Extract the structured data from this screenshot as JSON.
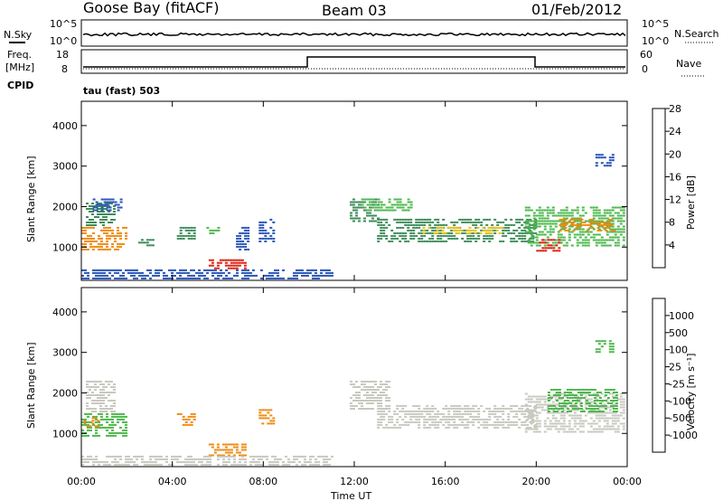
{
  "header": {
    "station": "Goose Bay (fitACF)",
    "beam": "Beam 03",
    "date": "01/Feb/2012"
  },
  "noise_panel": {
    "left_label": "N.Sky",
    "right_label": "N.Search",
    "left_ticks": [
      "10^5",
      "10^0"
    ],
    "right_ticks": [
      "10^5",
      "10^0"
    ]
  },
  "freq_panel": {
    "left_label_1": "Freq.",
    "left_label_2": "[MHz]",
    "cpid_label": "CPID",
    "right_label": "Nave",
    "left_ticks": [
      "18",
      "8"
    ],
    "right_ticks": [
      "60",
      "0"
    ]
  },
  "cpid_text": "tau (fast) 503",
  "colors": {
    "blue": "#1c3fe0",
    "dark_blue": "#2a55b8",
    "teal_green": "#3e8c5a",
    "green": "#4cb84c",
    "yellow": "#e8c21a",
    "orange": "#f08a10",
    "red": "#e02010",
    "grey": "#c8c8c0"
  },
  "chart_data": [
    {
      "type": "heatmap",
      "title": "Power",
      "ylabel": "Slant Range [km]",
      "xlabel": "",
      "x_ticks": [
        "00:00",
        "04:00",
        "08:00",
        "12:00",
        "16:00",
        "20:00",
        "00:00"
      ],
      "y_ticks": [
        "1000",
        "2000",
        "3000",
        "4000"
      ],
      "xlim_hours": [
        0,
        24
      ],
      "ylim_km": [
        180,
        4600
      ],
      "colorbar": {
        "label": "Power [dB]",
        "ticks": [
          "4",
          "8",
          "12",
          "16",
          "20",
          "24",
          "28"
        ],
        "range": [
          0,
          30
        ],
        "levels": [
          "#1c3fe0",
          "#2a55b8",
          "#3e8c5a",
          "#4cb84c",
          "#e8c21a",
          "#f08a10",
          "#e02010"
        ]
      },
      "regions": [
        {
          "t0": 0.0,
          "t1": 2.0,
          "r0": 900,
          "r1": 1500,
          "level": 5
        },
        {
          "t0": 0.2,
          "t1": 1.4,
          "r0": 1500,
          "r1": 2100,
          "level": 2
        },
        {
          "t0": 0.5,
          "t1": 1.8,
          "r0": 1900,
          "r1": 2200,
          "level": 1
        },
        {
          "t0": 2.5,
          "t1": 3.2,
          "r0": 1000,
          "r1": 1200,
          "level": 2
        },
        {
          "t0": 4.2,
          "t1": 5.0,
          "r0": 1200,
          "r1": 1500,
          "level": 2
        },
        {
          "t0": 5.5,
          "t1": 6.0,
          "r0": 1300,
          "r1": 1500,
          "level": 3
        },
        {
          "t0": 5.6,
          "t1": 7.2,
          "r0": 450,
          "r1": 700,
          "level": 6
        },
        {
          "t0": 6.8,
          "t1": 7.3,
          "r0": 900,
          "r1": 1500,
          "level": 1
        },
        {
          "t0": 7.8,
          "t1": 8.4,
          "r0": 1100,
          "r1": 1700,
          "level": 1
        },
        {
          "t0": 11.8,
          "t1": 13.0,
          "r0": 1600,
          "r1": 2200,
          "level": 2
        },
        {
          "t0": 12.3,
          "t1": 14.5,
          "r0": 1900,
          "r1": 2200,
          "level": 3
        },
        {
          "t0": 13.0,
          "t1": 20.0,
          "r0": 1100,
          "r1": 1700,
          "level": 2
        },
        {
          "t0": 15.0,
          "t1": 18.5,
          "r0": 1300,
          "r1": 1500,
          "level": 4
        },
        {
          "t0": 19.5,
          "t1": 23.8,
          "r0": 1000,
          "r1": 2000,
          "level": 3
        },
        {
          "t0": 21.0,
          "t1": 23.5,
          "r0": 1400,
          "r1": 1700,
          "level": 5
        },
        {
          "t0": 20.0,
          "t1": 21.0,
          "r0": 900,
          "r1": 1200,
          "level": 6
        },
        {
          "t0": 0.0,
          "t1": 11.0,
          "r0": 200,
          "r1": 450,
          "level": 1
        },
        {
          "t0": 22.6,
          "t1": 23.4,
          "r0": 3000,
          "r1": 3300,
          "level": 1
        }
      ]
    },
    {
      "type": "heatmap",
      "title": "Velocity",
      "ylabel": "Slant Range [km]",
      "xlabel": "Time UT",
      "x_ticks": [
        "00:00",
        "04:00",
        "08:00",
        "12:00",
        "16:00",
        "20:00",
        "00:00"
      ],
      "y_ticks": [
        "1000",
        "2000",
        "3000",
        "4000"
      ],
      "xlim_hours": [
        0,
        24
      ],
      "ylim_km": [
        180,
        4600
      ],
      "colorbar": {
        "label": "Velocity [m s⁻¹]",
        "ticks": [
          "1000",
          "500",
          "100",
          "25",
          "-25",
          "-100",
          "-500",
          "-1000"
        ],
        "range": [
          -1000,
          1000
        ],
        "levels": [
          "#1c3fe0",
          "#2a55b8",
          "#3e8c5a",
          "#4cb84c",
          "#c8c8c0",
          "#f08a10",
          "#f05010",
          "#e02010"
        ]
      },
      "regions": [
        {
          "t0": 0.0,
          "t1": 2.0,
          "r0": 900,
          "r1": 1500,
          "level": 3
        },
        {
          "t0": 0.2,
          "t1": 1.4,
          "r0": 1500,
          "r1": 2300,
          "level": 4
        },
        {
          "t0": 0.1,
          "t1": 0.8,
          "r0": 1150,
          "r1": 1400,
          "level": 5
        },
        {
          "t0": 4.2,
          "t1": 5.0,
          "r0": 1200,
          "r1": 1500,
          "level": 5
        },
        {
          "t0": 5.6,
          "t1": 7.2,
          "r0": 450,
          "r1": 750,
          "level": 5
        },
        {
          "t0": 7.8,
          "t1": 8.4,
          "r0": 1200,
          "r1": 1600,
          "level": 5
        },
        {
          "t0": 11.8,
          "t1": 13.5,
          "r0": 1600,
          "r1": 2300,
          "level": 4
        },
        {
          "t0": 13.0,
          "t1": 20.0,
          "r0": 1100,
          "r1": 1700,
          "level": 4
        },
        {
          "t0": 19.5,
          "t1": 23.8,
          "r0": 1000,
          "r1": 2000,
          "level": 4
        },
        {
          "t0": 20.5,
          "t1": 23.5,
          "r0": 1500,
          "r1": 2100,
          "level": 3
        },
        {
          "t0": 0.0,
          "t1": 11.0,
          "r0": 200,
          "r1": 450,
          "level": 4
        },
        {
          "t0": 22.6,
          "t1": 23.4,
          "r0": 3000,
          "r1": 3300,
          "level": 3
        }
      ]
    }
  ]
}
